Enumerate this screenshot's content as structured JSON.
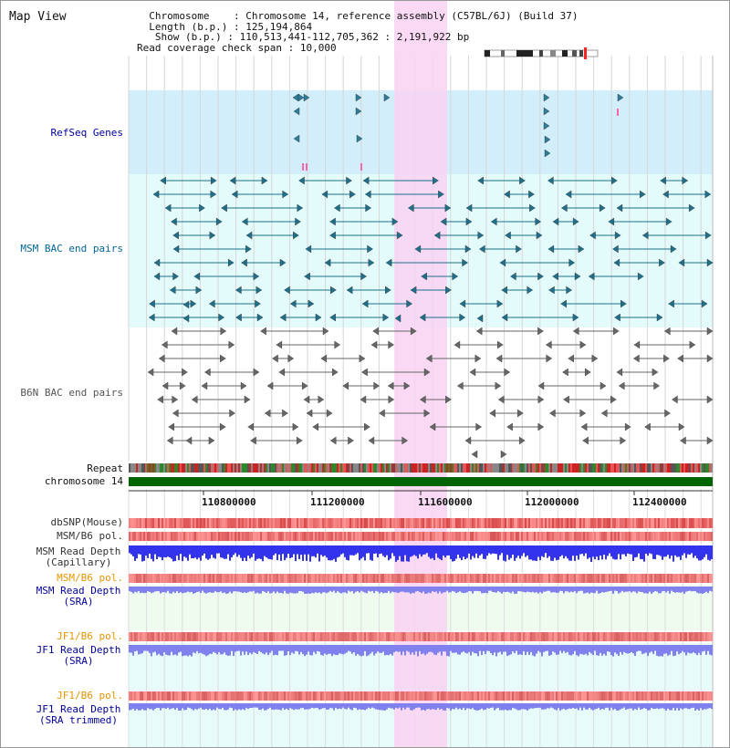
{
  "title": "Map View",
  "info": {
    "chromosome_key": "Chromosome",
    "chromosome_val": "Chromosome 14, reference assembly (C57BL/6J) (Build 37)",
    "length_key": "Length (b.p.)",
    "length_val": "125,194,864",
    "show_key": "Show (b.p.)",
    "show_val": "110,513,441-112,705,362 : 2,191,922 bp",
    "coverage_key": "Read coverage check span",
    "coverage_val": "10,000"
  },
  "tracks": {
    "refseq": "RefSeq Genes",
    "msm_bac": "MSM BAC end pairs",
    "b6n_bac": "B6N BAC end pairs",
    "repeat": "Repeat",
    "chromosome": "chromosome 14",
    "dbsnp": "dbSNP(Mouse)",
    "msm_b6_pol_1": "MSM/B6 pol.",
    "msm_read_depth_cap_1": "MSM Read Depth",
    "msm_read_depth_cap_2": "(Capillary)",
    "msm_b6_pol_2": "MSM/B6 pol.",
    "msm_read_depth_sra_1": "MSM Read Depth",
    "msm_read_depth_sra_2": "(SRA)",
    "jf1_b6_pol_1": "JF1/B6 pol.",
    "jf1_read_depth_sra_1": "JF1 Read Depth",
    "jf1_read_depth_sra_2": "(SRA)",
    "jf1_b6_pol_2": "JF1/B6 pol.",
    "jf1_read_depth_trim_1": "JF1 Read Depth",
    "jf1_read_depth_trim_2": "(SRA trimmed)"
  },
  "axis_ticks": [
    "110800000",
    "111200000",
    "111600000",
    "112000000",
    "112400000"
  ],
  "colors": {
    "refseq_bg": "#d2eefa",
    "msm_bg": "#e4fbfb",
    "highlight": "#f9d2f2",
    "chromosome_bar": "#006400",
    "read_depth": "#3333ee",
    "read_depth_light": "#8080ee",
    "label_blue": "#000099",
    "label_teal": "#006699",
    "label_orange": "#e69500"
  }
}
